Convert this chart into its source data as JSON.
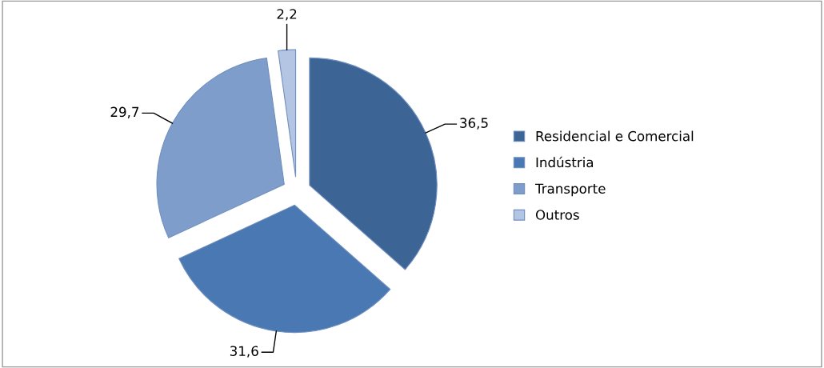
{
  "chart_data": {
    "type": "pie",
    "categories": [
      "Residencial e Comercial",
      "Indústria",
      "Transporte",
      "Outros"
    ],
    "values": [
      36.5,
      31.6,
      29.7,
      2.2
    ],
    "value_labels": [
      "36,5",
      "31,6",
      "29,7",
      "2,2"
    ],
    "colors": [
      "#3c6495",
      "#4a78b2",
      "#7f9dca",
      "#b3c5e2"
    ],
    "legend": "right"
  }
}
